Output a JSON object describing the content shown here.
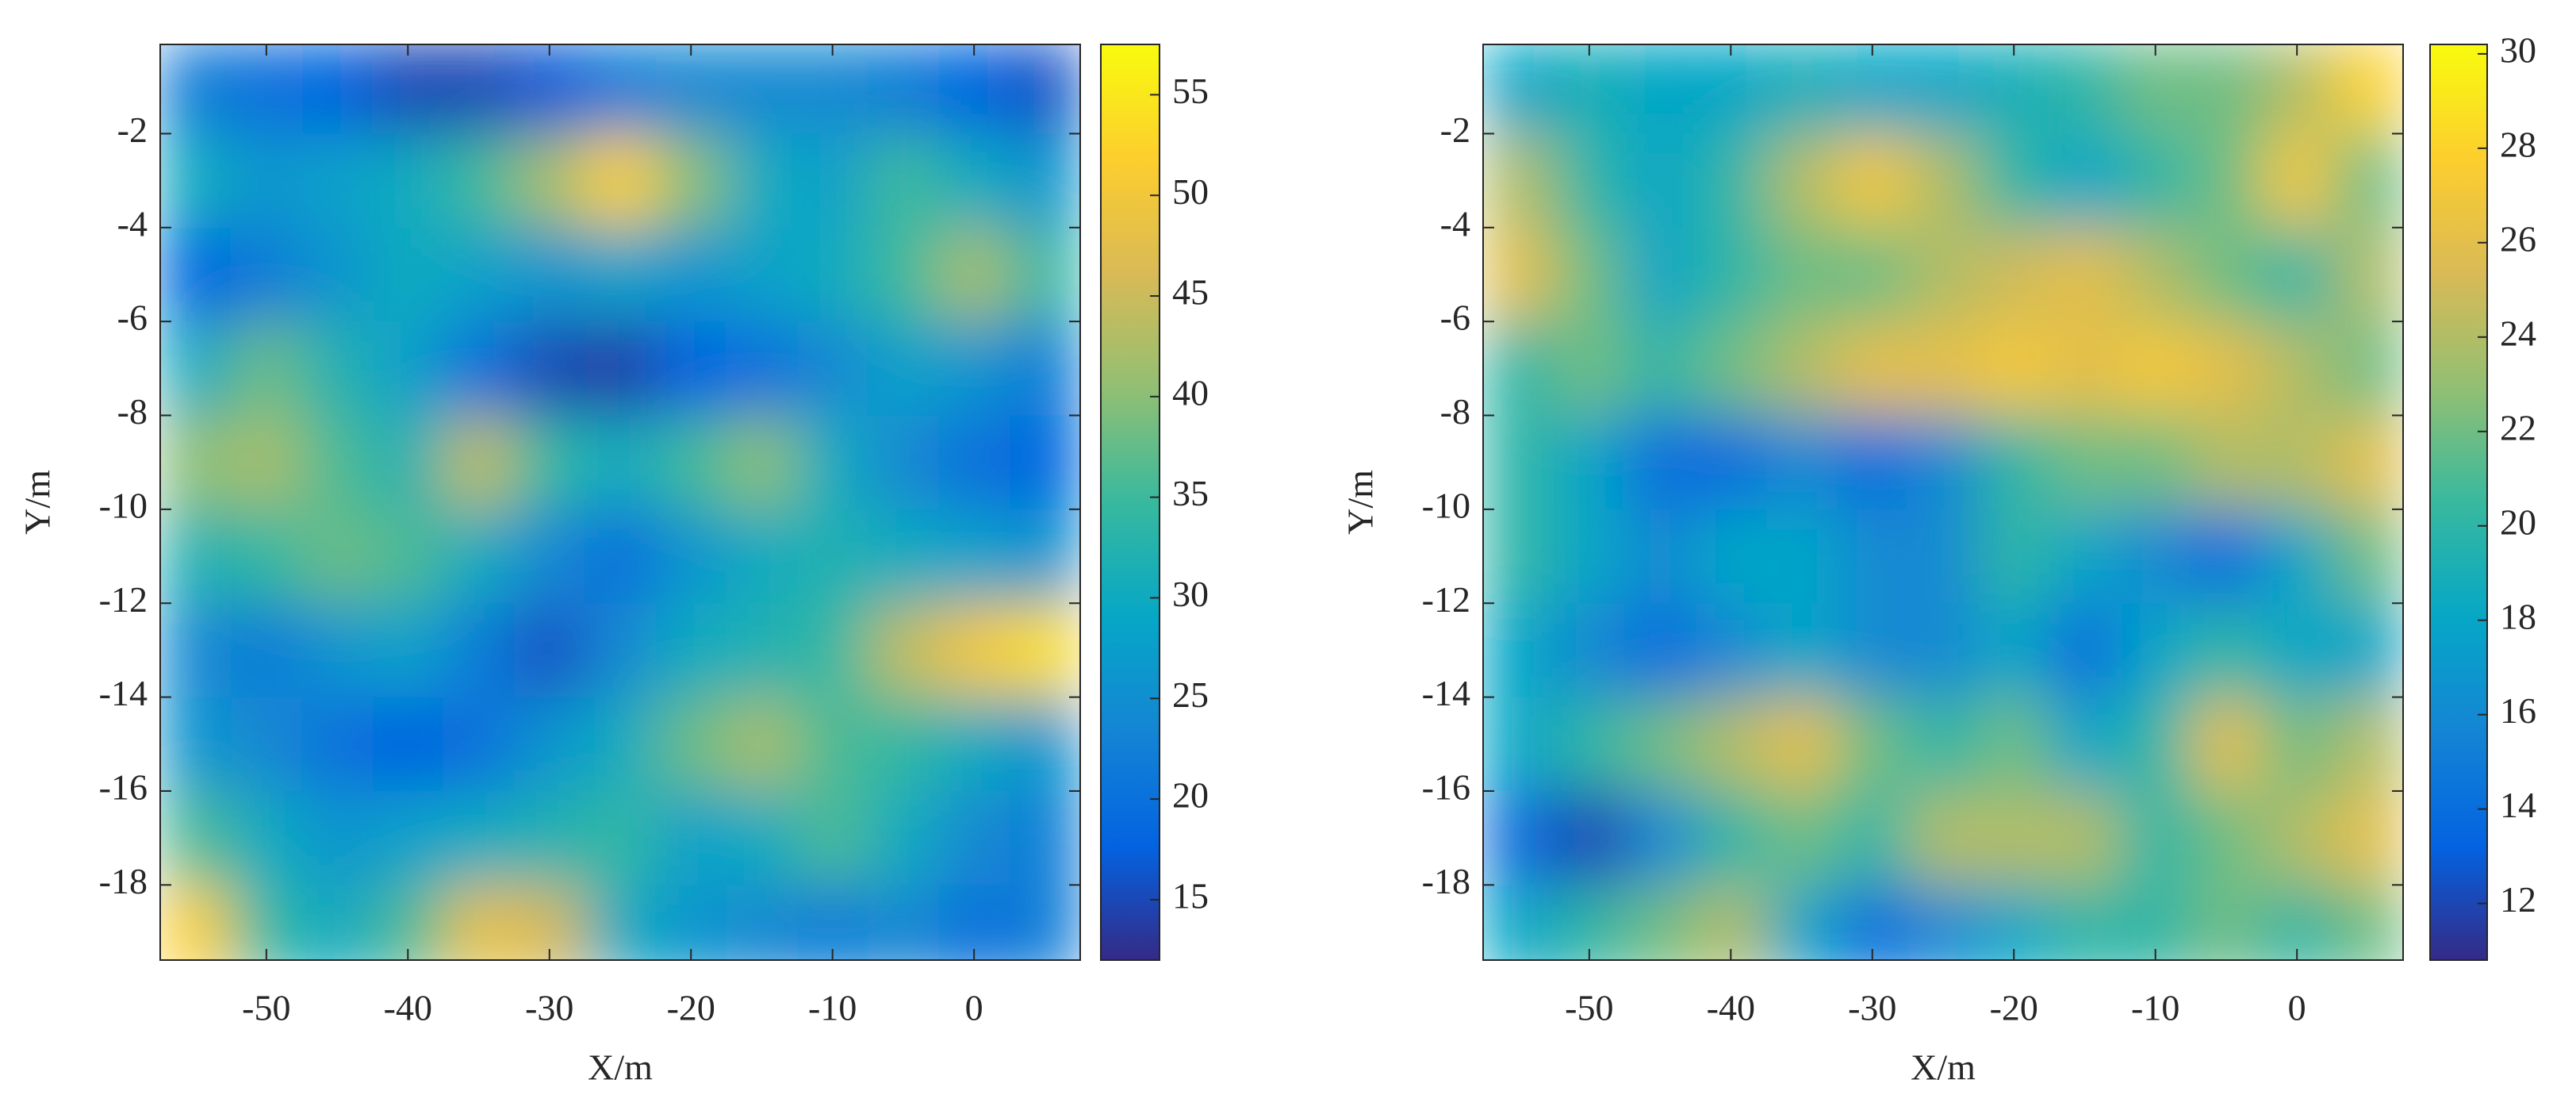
{
  "chart_data": [
    {
      "type": "heatmap",
      "xlabel": "X/m",
      "ylabel": "Y/m",
      "colormap": "parula",
      "xlim": [
        -57.5,
        7.5
      ],
      "ylim": [
        -19.6,
        -0.1
      ],
      "xticks": [
        -50,
        -40,
        -30,
        -20,
        -10,
        0
      ],
      "yticks": [
        -2,
        -4,
        -6,
        -8,
        -10,
        -12,
        -14,
        -16,
        -18
      ],
      "clim": [
        12,
        57.5
      ],
      "cticks": [
        15,
        20,
        25,
        30,
        35,
        40,
        45,
        50,
        55
      ],
      "x": [
        -55,
        -50,
        -45,
        -40,
        -35,
        -30,
        -25,
        -20,
        -15,
        -10,
        -5,
        0,
        5
      ],
      "y": [
        -1,
        -3,
        -5,
        -7,
        -9,
        -11,
        -13,
        -15,
        -17,
        -19
      ],
      "z": [
        [
          22,
          20,
          18,
          15,
          15,
          17,
          22,
          24,
          24,
          24,
          22,
          18,
          16
        ],
        [
          30,
          26,
          28,
          30,
          35,
          42,
          52,
          40,
          30,
          28,
          35,
          30,
          26
        ],
        [
          18,
          22,
          26,
          30,
          28,
          26,
          28,
          26,
          28,
          30,
          35,
          42,
          34
        ],
        [
          30,
          38,
          32,
          28,
          20,
          15,
          14,
          18,
          20,
          24,
          28,
          26,
          22
        ],
        [
          40,
          42,
          36,
          32,
          44,
          34,
          30,
          35,
          40,
          30,
          24,
          20,
          18
        ],
        [
          32,
          34,
          38,
          36,
          30,
          24,
          20,
          26,
          30,
          32,
          30,
          28,
          26
        ],
        [
          24,
          22,
          26,
          28,
          22,
          16,
          24,
          30,
          32,
          34,
          44,
          50,
          54
        ],
        [
          26,
          24,
          20,
          18,
          20,
          26,
          30,
          38,
          42,
          36,
          34,
          30,
          26
        ],
        [
          36,
          30,
          26,
          28,
          30,
          32,
          34,
          28,
          30,
          36,
          30,
          24,
          22
        ],
        [
          52,
          34,
          30,
          36,
          48,
          46,
          30,
          26,
          24,
          22,
          24,
          20,
          22
        ]
      ]
    },
    {
      "type": "heatmap",
      "xlabel": "X/m",
      "ylabel": "Y/m",
      "colormap": "parula",
      "xlim": [
        -57.5,
        7.5
      ],
      "ylim": [
        -19.6,
        -0.1
      ],
      "xticks": [
        -50,
        -40,
        -30,
        -20,
        -10,
        0
      ],
      "yticks": [
        -2,
        -4,
        -6,
        -8,
        -10,
        -12,
        -14,
        -16,
        -18
      ],
      "clim": [
        10.8,
        30.2
      ],
      "cticks": [
        12,
        14,
        16,
        18,
        20,
        22,
        24,
        26,
        28,
        30
      ],
      "x": [
        -55,
        -50,
        -45,
        -40,
        -35,
        -30,
        -25,
        -20,
        -15,
        -10,
        -5,
        0,
        5
      ],
      "y": [
        -1,
        -3,
        -5,
        -7,
        -9,
        -11,
        -13,
        -15,
        -17,
        -19
      ],
      "z": [
        [
          18,
          19,
          18,
          18,
          19,
          18,
          18,
          19,
          20,
          22,
          22,
          24,
          28
        ],
        [
          24,
          20,
          18,
          20,
          24,
          27,
          24,
          20,
          18,
          20,
          22,
          27,
          22
        ],
        [
          26,
          22,
          18,
          20,
          22,
          22,
          24,
          25,
          26,
          24,
          22,
          20,
          24
        ],
        [
          20,
          22,
          20,
          22,
          24,
          26,
          26,
          27,
          26,
          27,
          26,
          24,
          22
        ],
        [
          20,
          18,
          14,
          14,
          16,
          14,
          16,
          20,
          22,
          22,
          24,
          24,
          26
        ],
        [
          20,
          18,
          16,
          18,
          18,
          16,
          16,
          20,
          18,
          16,
          14,
          18,
          22
        ],
        [
          18,
          16,
          14,
          16,
          18,
          16,
          16,
          18,
          14,
          18,
          20,
          18,
          18
        ],
        [
          18,
          20,
          22,
          24,
          26,
          22,
          20,
          22,
          18,
          20,
          26,
          22,
          24
        ],
        [
          14,
          12,
          16,
          20,
          22,
          20,
          24,
          24,
          24,
          20,
          22,
          24,
          26
        ],
        [
          18,
          20,
          22,
          24,
          18,
          14,
          16,
          18,
          20,
          20,
          22,
          20,
          22
        ]
      ]
    }
  ]
}
